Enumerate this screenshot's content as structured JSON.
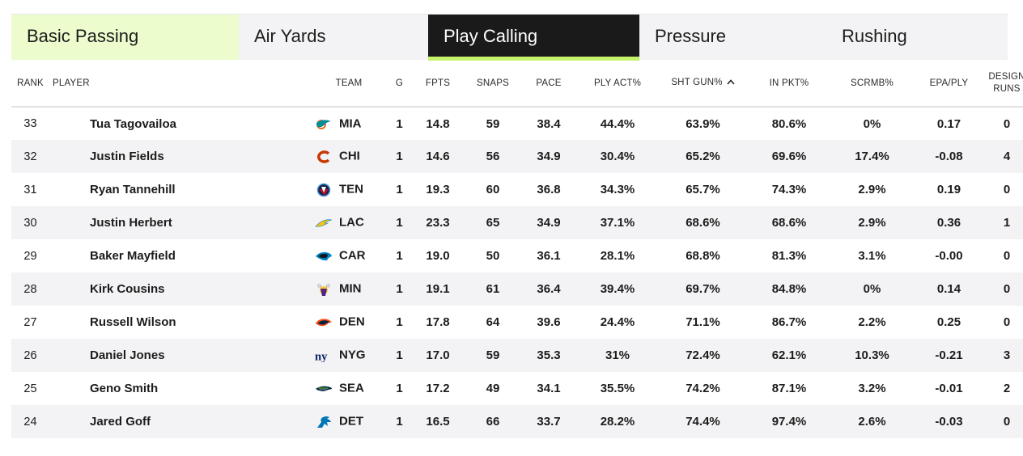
{
  "tabs": [
    {
      "label": "Basic Passing",
      "state": "highlighted"
    },
    {
      "label": "Air Yards",
      "state": "inactive"
    },
    {
      "label": "Play Calling",
      "state": "active"
    },
    {
      "label": "Pressure",
      "state": "inactive"
    },
    {
      "label": "Rushing",
      "state": "inactive"
    }
  ],
  "columns": {
    "rank": "RANK",
    "player": "PLAYER",
    "team": "TEAM",
    "g": "G",
    "fpts": "FPTS",
    "snaps": "SNAPS",
    "pace": "PACE",
    "ply_act": "PLY ACT%",
    "sht_gun": "SHT GUN%",
    "in_pkt": "IN PKT%",
    "scrmb": "SCRMB%",
    "epa_ply": "EPA/PLY",
    "design_runs_1": "DESIGN",
    "design_runs_2": "RUNS"
  },
  "sort": {
    "column": "sht_gun",
    "direction": "ascending"
  },
  "colors": {
    "tab_highlight": "#ecfccd",
    "tab_active_bg": "#1a1a1a",
    "tab_active_underline": "#c7f36b",
    "row_stripe": "#f3f3f5"
  },
  "rows": [
    {
      "rank": "33",
      "player": "Tua Tagovailoa",
      "team": "MIA",
      "logo": "dolphins-logo-icon",
      "g": "1",
      "fpts": "14.8",
      "snaps": "59",
      "pace": "38.4",
      "ply_act": "44.4%",
      "sht_gun": "63.9%",
      "in_pkt": "80.6%",
      "scrmb": "0%",
      "epa_ply": "0.17",
      "design_runs": "0"
    },
    {
      "rank": "32",
      "player": "Justin Fields",
      "team": "CHI",
      "logo": "bears-logo-icon",
      "g": "1",
      "fpts": "14.6",
      "snaps": "56",
      "pace": "34.9",
      "ply_act": "30.4%",
      "sht_gun": "65.2%",
      "in_pkt": "69.6%",
      "scrmb": "17.4%",
      "epa_ply": "-0.08",
      "design_runs": "4"
    },
    {
      "rank": "31",
      "player": "Ryan Tannehill",
      "team": "TEN",
      "logo": "titans-logo-icon",
      "g": "1",
      "fpts": "19.3",
      "snaps": "60",
      "pace": "36.8",
      "ply_act": "34.3%",
      "sht_gun": "65.7%",
      "in_pkt": "74.3%",
      "scrmb": "2.9%",
      "epa_ply": "0.19",
      "design_runs": "0"
    },
    {
      "rank": "30",
      "player": "Justin Herbert",
      "team": "LAC",
      "logo": "chargers-logo-icon",
      "g": "1",
      "fpts": "23.3",
      "snaps": "65",
      "pace": "34.9",
      "ply_act": "37.1%",
      "sht_gun": "68.6%",
      "in_pkt": "68.6%",
      "scrmb": "2.9%",
      "epa_ply": "0.36",
      "design_runs": "1"
    },
    {
      "rank": "29",
      "player": "Baker Mayfield",
      "team": "CAR",
      "logo": "panthers-logo-icon",
      "g": "1",
      "fpts": "19.0",
      "snaps": "50",
      "pace": "36.1",
      "ply_act": "28.1%",
      "sht_gun": "68.8%",
      "in_pkt": "81.3%",
      "scrmb": "3.1%",
      "epa_ply": "-0.00",
      "design_runs": "0"
    },
    {
      "rank": "28",
      "player": "Kirk Cousins",
      "team": "MIN",
      "logo": "vikings-logo-icon",
      "g": "1",
      "fpts": "19.1",
      "snaps": "61",
      "pace": "36.4",
      "ply_act": "39.4%",
      "sht_gun": "69.7%",
      "in_pkt": "84.8%",
      "scrmb": "0%",
      "epa_ply": "0.14",
      "design_runs": "0"
    },
    {
      "rank": "27",
      "player": "Russell Wilson",
      "team": "DEN",
      "logo": "broncos-logo-icon",
      "g": "1",
      "fpts": "17.8",
      "snaps": "64",
      "pace": "39.6",
      "ply_act": "24.4%",
      "sht_gun": "71.1%",
      "in_pkt": "86.7%",
      "scrmb": "2.2%",
      "epa_ply": "0.25",
      "design_runs": "0"
    },
    {
      "rank": "26",
      "player": "Daniel Jones",
      "team": "NYG",
      "logo": "giants-logo-icon",
      "g": "1",
      "fpts": "17.0",
      "snaps": "59",
      "pace": "35.3",
      "ply_act": "31%",
      "sht_gun": "72.4%",
      "in_pkt": "62.1%",
      "scrmb": "10.3%",
      "epa_ply": "-0.21",
      "design_runs": "3"
    },
    {
      "rank": "25",
      "player": "Geno Smith",
      "team": "SEA",
      "logo": "seahawks-logo-icon",
      "g": "1",
      "fpts": "17.2",
      "snaps": "49",
      "pace": "34.1",
      "ply_act": "35.5%",
      "sht_gun": "74.2%",
      "in_pkt": "87.1%",
      "scrmb": "3.2%",
      "epa_ply": "-0.01",
      "design_runs": "2"
    },
    {
      "rank": "24",
      "player": "Jared Goff",
      "team": "DET",
      "logo": "lions-logo-icon",
      "g": "1",
      "fpts": "16.5",
      "snaps": "66",
      "pace": "33.7",
      "ply_act": "28.2%",
      "sht_gun": "74.4%",
      "in_pkt": "97.4%",
      "scrmb": "2.6%",
      "epa_ply": "-0.03",
      "design_runs": "0"
    }
  ]
}
